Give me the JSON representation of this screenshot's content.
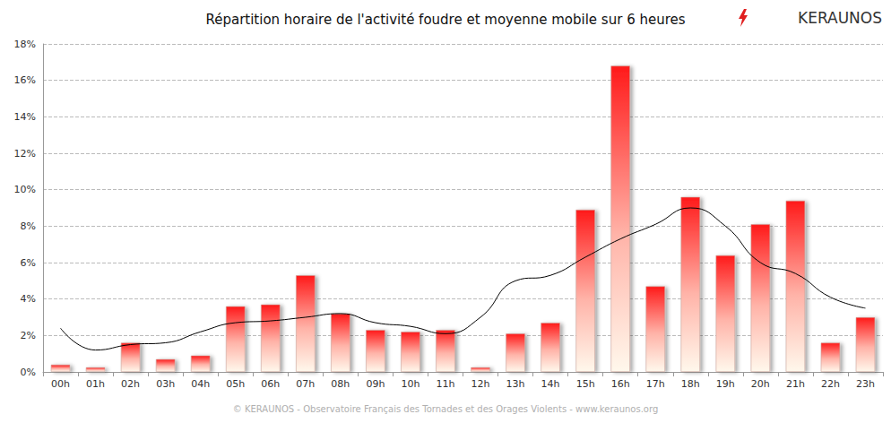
{
  "chart_data": {
    "type": "bar",
    "title": "Répartition horaire de l'activité foudre et moyenne mobile sur 6 heures",
    "logo": "KERAUNOS",
    "footer": "© KERAUNOS - Observatoire Français des Tornades et des Orages Violents - www.keraunos.org",
    "categories": [
      "00h",
      "01h",
      "02h",
      "03h",
      "04h",
      "05h",
      "06h",
      "07h",
      "08h",
      "09h",
      "10h",
      "11h",
      "12h",
      "13h",
      "14h",
      "15h",
      "16h",
      "17h",
      "18h",
      "19h",
      "20h",
      "21h",
      "22h",
      "23h"
    ],
    "series": [
      {
        "type": "bar",
        "color": "#ff1a1a",
        "values": [
          0.4,
          0.25,
          1.6,
          0.7,
          0.9,
          3.6,
          3.7,
          5.3,
          3.2,
          2.3,
          2.2,
          2.3,
          0.25,
          2.1,
          2.7,
          8.9,
          16.8,
          4.7,
          9.6,
          6.4,
          8.1,
          9.4,
          1.6,
          3.0
        ]
      },
      {
        "type": "line",
        "color": "#000000",
        "line_style": "solid",
        "values": [
          2.4,
          1.2,
          1.5,
          1.6,
          2.2,
          2.7,
          2.8,
          3.0,
          3.2,
          2.7,
          2.5,
          2.1,
          3.0,
          5.0,
          5.3,
          6.3,
          7.3,
          8.1,
          9.0,
          8.0,
          6.0,
          5.4,
          4.1,
          3.5
        ]
      }
    ],
    "ylim": [
      0,
      18
    ],
    "yticks": [
      {
        "value": 0,
        "label": "0%"
      },
      {
        "value": 2,
        "label": "2%"
      },
      {
        "value": 4,
        "label": "4%"
      },
      {
        "value": 6,
        "label": "6%"
      },
      {
        "value": 8,
        "label": "8%"
      },
      {
        "value": 10,
        "label": "10%"
      },
      {
        "value": 12,
        "label": "12%"
      },
      {
        "value": 14,
        "label": "14%"
      },
      {
        "value": 16,
        "label": "16%"
      },
      {
        "value": 18,
        "label": "18%"
      }
    ],
    "grid": true
  }
}
